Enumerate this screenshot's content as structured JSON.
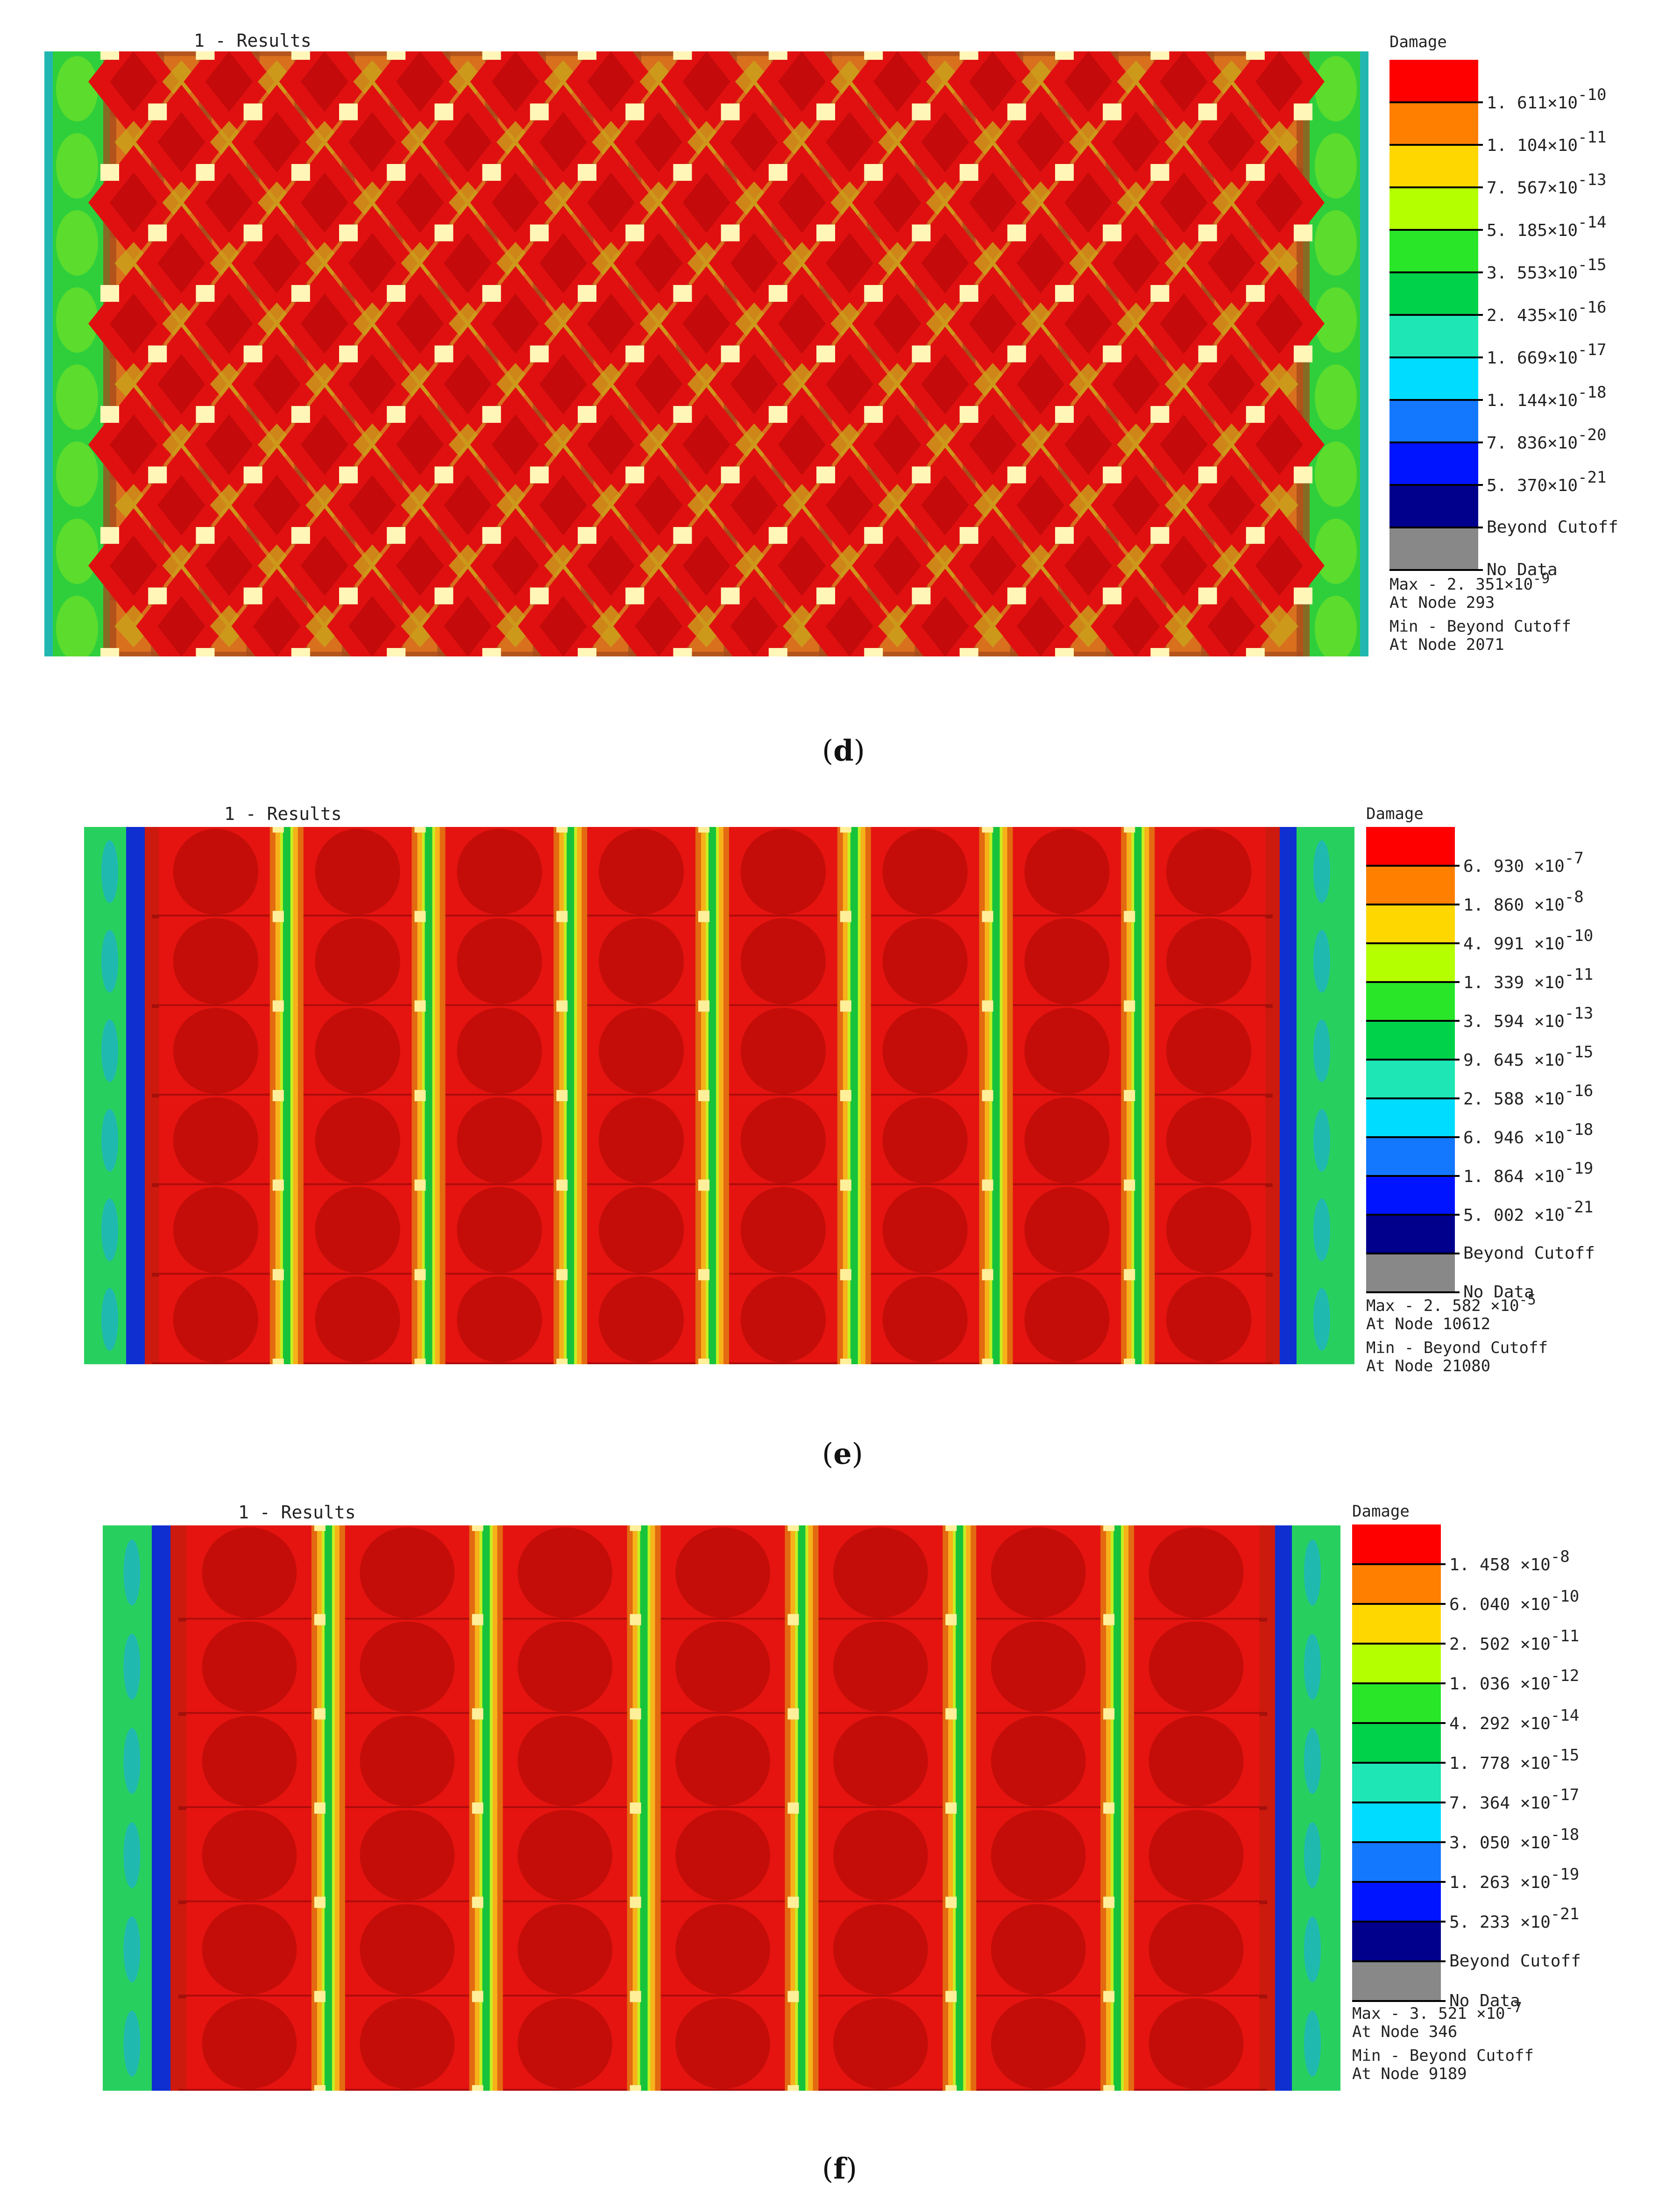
{
  "panels": [
    {
      "id": "d",
      "caption": "d",
      "results_title": "1 - Results",
      "legend_title": "Damage",
      "pattern": "checker",
      "ticks": [
        {
          "mantissa": "1. 611×10",
          "exp": "-10"
        },
        {
          "mantissa": "1. 104×10",
          "exp": "-11"
        },
        {
          "mantissa": "7. 567×10",
          "exp": "-13"
        },
        {
          "mantissa": "5. 185×10",
          "exp": "-14"
        },
        {
          "mantissa": "3. 553×10",
          "exp": "-15"
        },
        {
          "mantissa": "2. 435×10",
          "exp": "-16"
        },
        {
          "mantissa": "1. 669×10",
          "exp": "-17"
        },
        {
          "mantissa": "1. 144×10",
          "exp": "-18"
        },
        {
          "mantissa": "7. 836×10",
          "exp": "-20"
        },
        {
          "mantissa": "5. 370×10",
          "exp": "-21"
        }
      ],
      "beyond_cutoff": "Beyond Cutoff",
      "no_data": "No Data",
      "max_label": "Max - 2. 351×10",
      "max_exp": "-9",
      "max_node": "At Node 293",
      "min_label": "Min - Beyond Cutoff",
      "min_node": "At Node 2071"
    },
    {
      "id": "e",
      "caption": "e",
      "results_title": "1 - Results",
      "legend_title": "Damage",
      "pattern": "bands",
      "ticks": [
        {
          "mantissa": "6. 930 ×10",
          "exp": "-7"
        },
        {
          "mantissa": "1. 860 ×10",
          "exp": "-8"
        },
        {
          "mantissa": "4. 991 ×10",
          "exp": "-10"
        },
        {
          "mantissa": "1. 339 ×10",
          "exp": "-11"
        },
        {
          "mantissa": "3. 594 ×10",
          "exp": "-13"
        },
        {
          "mantissa": "9. 645 ×10",
          "exp": "-15"
        },
        {
          "mantissa": "2. 588 ×10",
          "exp": "-16"
        },
        {
          "mantissa": "6. 946 ×10",
          "exp": "-18"
        },
        {
          "mantissa": "1. 864 ×10",
          "exp": "-19"
        },
        {
          "mantissa": "5. 002 ×10",
          "exp": "-21"
        }
      ],
      "beyond_cutoff": "Beyond Cutoff",
      "no_data": "No Data",
      "max_label": "Max - 2. 582 ×10",
      "max_exp": "-5",
      "max_node": "At Node 10612",
      "min_label": "Min - Beyond Cutoff",
      "min_node": "At Node 21080"
    },
    {
      "id": "f",
      "caption": "f",
      "results_title": "1 - Results",
      "legend_title": "Damage",
      "pattern": "bands",
      "ticks": [
        {
          "mantissa": "1. 458 ×10",
          "exp": "-8"
        },
        {
          "mantissa": "6. 040 ×10",
          "exp": "-10"
        },
        {
          "mantissa": "2. 502 ×10",
          "exp": "-11"
        },
        {
          "mantissa": "1. 036 ×10",
          "exp": "-12"
        },
        {
          "mantissa": "4. 292 ×10",
          "exp": "-14"
        },
        {
          "mantissa": "1. 778 ×10",
          "exp": "-15"
        },
        {
          "mantissa": "7. 364 ×10",
          "exp": "-17"
        },
        {
          "mantissa": "3. 050 ×10",
          "exp": "-18"
        },
        {
          "mantissa": "1. 263 ×10",
          "exp": "-19"
        },
        {
          "mantissa": "5. 233 ×10",
          "exp": "-21"
        }
      ],
      "beyond_cutoff": "Beyond Cutoff",
      "no_data": "No Data",
      "max_label": "Max - 3. 521 ×10",
      "max_exp": "-7",
      "max_node": "At Node 346",
      "min_label": "Min - Beyond Cutoff",
      "min_node": "At Node 9189"
    }
  ],
  "legend_colors": [
    "#ff0000",
    "#ff7f00",
    "#ffd700",
    "#b4ff00",
    "#29e629",
    "#00d24a",
    "#1ee6b4",
    "#00dcff",
    "#1478ff",
    "#0014ff",
    "#00008c",
    "#888888"
  ]
}
